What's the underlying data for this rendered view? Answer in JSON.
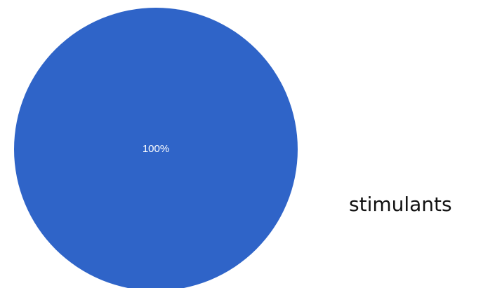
{
  "chart_data": {
    "type": "pie",
    "categories": [
      "stimulants"
    ],
    "values": [
      100
    ],
    "labels": [
      "100%"
    ],
    "colors": [
      "#2f64c8"
    ],
    "legend_placement": "right"
  }
}
